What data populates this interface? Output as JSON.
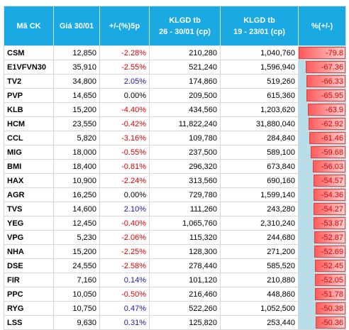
{
  "table": {
    "header": [
      "Mã CK",
      "Giá 30/01",
      "+/-(%)5p",
      "KLGD tb\n26 - 30/01 (cp)",
      "KLGD tb\n19 - 23/01 (cp)",
      "%(+/-)"
    ],
    "rows": [
      [
        "CSM",
        "12,850",
        "-2.28%",
        "210,280",
        "1,040,760",
        -79.8
      ],
      [
        "E1VFVN30",
        "35,910",
        "-2.55%",
        "521,240",
        "1,596,940",
        -67.36
      ],
      [
        "TV2",
        "34,800",
        "2.05%",
        "174,860",
        "519,260",
        -66.33
      ],
      [
        "PVP",
        "14,650",
        "0.00%",
        "209,500",
        "615,360",
        -65.95
      ],
      [
        "KLB",
        "15,200",
        "-4.40%",
        "434,560",
        "1,203,620",
        -63.9
      ],
      [
        "HCM",
        "23,550",
        "-0.42%",
        "11,822,240",
        "31,880,040",
        -62.92
      ],
      [
        "CCL",
        "5,820",
        "-3.16%",
        "109,780",
        "284,840",
        -61.46
      ],
      [
        "MIG",
        "18,000",
        "-0.55%",
        "237,500",
        "589,100",
        -59.68
      ],
      [
        "BMI",
        "18,400",
        "-0.81%",
        "296,320",
        "673,840",
        -56.03
      ],
      [
        "HAX",
        "10,900",
        "-2.24%",
        "313,560",
        "690,160",
        -54.57
      ],
      [
        "AGR",
        "16,250",
        "0.00%",
        "729,780",
        "1,599,140",
        -54.36
      ],
      [
        "TVS",
        "14,600",
        "2.10%",
        "111,260",
        "243,280",
        -54.27
      ],
      [
        "YEG",
        "12,450",
        "-0.40%",
        "1,065,760",
        "2,310,240",
        -53.87
      ],
      [
        "VPG",
        "5,230",
        "-2.06%",
        "115,320",
        "244,680",
        -52.87
      ],
      [
        "NHA",
        "15,200",
        "-2.25%",
        "128,300",
        "271,200",
        -52.69
      ],
      [
        "DSE",
        "24,550",
        "-2.58%",
        "278,440",
        "585,520",
        -52.45
      ],
      [
        "FIR",
        "7,160",
        "0.14%",
        "101,120",
        "210,880",
        -52.05
      ],
      [
        "PPC",
        "10,050",
        "-0.50%",
        "216,460",
        "448,860",
        -51.78
      ],
      [
        "RYG",
        "10,750",
        "0.47%",
        "522,260",
        "1,052,500",
        -50.38
      ],
      [
        "LSS",
        "9,630",
        "0.31%",
        "125,820",
        "253,440",
        -50.36
      ]
    ]
  }
}
